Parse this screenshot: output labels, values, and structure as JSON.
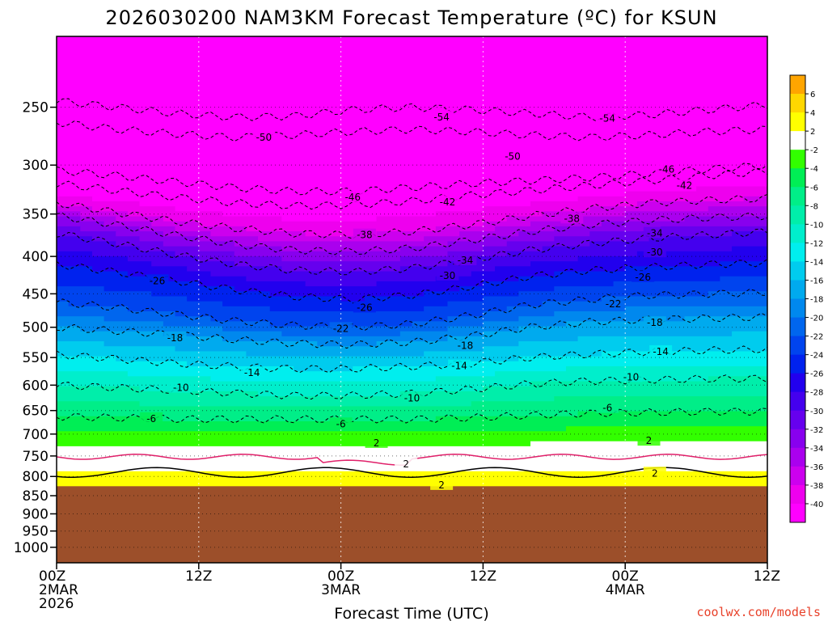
{
  "chart_data": {
    "type": "heatmap",
    "title": "2026030200 NAM3KM Forecast Temperature (ºC) for KSUN",
    "xlabel": "Forecast Time (UTC)",
    "ylabel": "",
    "y_scale": "log-pressure",
    "y_unit": "hPa",
    "ylim": [
      1050,
      200
    ],
    "xlim_hours": [
      0,
      60
    ],
    "y_ticks": [
      250,
      300,
      350,
      400,
      450,
      500,
      550,
      600,
      650,
      700,
      750,
      800,
      850,
      900,
      950,
      1000
    ],
    "x_ticks": [
      {
        "hour": 0,
        "lines": [
          "00Z",
          "2MAR",
          "2026"
        ]
      },
      {
        "hour": 12,
        "lines": [
          "12Z"
        ]
      },
      {
        "hour": 24,
        "lines": [
          "00Z",
          "3MAR"
        ]
      },
      {
        "hour": 36,
        "lines": [
          "12Z"
        ]
      },
      {
        "hour": 48,
        "lines": [
          "00Z",
          "4MAR"
        ]
      },
      {
        "hour": 60,
        "lines": [
          "12Z"
        ]
      }
    ],
    "colorbar": {
      "levels": [
        6,
        4,
        2,
        -2,
        -4,
        -6,
        -8,
        -10,
        -12,
        -14,
        -16,
        -18,
        -20,
        -22,
        -24,
        -26,
        -28,
        -30,
        -32,
        -34,
        -36,
        -38,
        -40
      ],
      "colors": [
        "#ffa500",
        "#ffd700",
        "#ffff00",
        "#ffffff",
        "#32ff00",
        "#00ee55",
        "#00ee88",
        "#00eeaa",
        "#00eecc",
        "#00eeee",
        "#00ccee",
        "#00aaee",
        "#0088ee",
        "#0066ee",
        "#0044ee",
        "#0022ee",
        "#2200ee",
        "#4400ee",
        "#6600ee",
        "#8800ee",
        "#aa00ee",
        "#cc00ee",
        "#ee00ee",
        "#ff00ff"
      ]
    },
    "ground_level_hpa": 825,
    "ground_color": "#9c4f2a",
    "freezing_line_color": "#e0206a",
    "isotherms": [
      {
        "t": -54,
        "p": [
          245,
          250,
          255,
          258,
          257,
          252,
          250,
          252,
          255,
          258,
          256,
          252,
          248
        ]
      },
      {
        "t": -50,
        "p": [
          262,
          268,
          272,
          275,
          273,
          270,
          268,
          270,
          273,
          275,
          273,
          270,
          268
        ]
      },
      {
        "t": -46,
        "p": [
          305,
          310,
          316,
          322,
          326,
          326,
          322,
          318,
          315,
          312,
          308,
          304,
          300
        ]
      },
      {
        "t": -42,
        "p": [
          318,
          325,
          332,
          338,
          341,
          340,
          336,
          330,
          325,
          320,
          315,
          310,
          306
        ]
      },
      {
        "t": -38,
        "p": [
          338,
          348,
          358,
          366,
          372,
          374,
          370,
          362,
          352,
          344,
          338,
          335,
          333
        ]
      },
      {
        "t": -34,
        "p": [
          352,
          362,
          374,
          385,
          392,
          394,
          390,
          380,
          370,
          362,
          357,
          354,
          352
        ]
      },
      {
        "t": -30,
        "p": [
          372,
          384,
          398,
          410,
          418,
          420,
          415,
          404,
          392,
          384,
          378,
          374,
          370
        ]
      },
      {
        "t": -26,
        "p": [
          410,
          420,
          432,
          444,
          454,
          458,
          452,
          440,
          426,
          418,
          414,
          410,
          408
        ]
      },
      {
        "t": -22,
        "p": [
          462,
          470,
          480,
          490,
          497,
          500,
          495,
          482,
          466,
          458,
          452,
          450,
          448
        ]
      },
      {
        "t": -18,
        "p": [
          500,
          506,
          512,
          520,
          526,
          528,
          524,
          514,
          500,
          492,
          488,
          486,
          484
        ]
      },
      {
        "t": -14,
        "p": [
          545,
          552,
          560,
          566,
          570,
          570,
          566,
          560,
          550,
          544,
          540,
          538,
          536
        ]
      },
      {
        "t": -10,
        "p": [
          600,
          605,
          610,
          615,
          620,
          620,
          616,
          608,
          598,
          592,
          590,
          588,
          588
        ]
      },
      {
        "t": -6,
        "p": [
          662,
          665,
          668,
          668,
          668,
          668,
          668,
          665,
          660,
          656,
          654,
          652,
          652
        ]
      }
    ],
    "contour_labels": [
      {
        "t": -50,
        "hour": 17.5,
        "p": 275
      },
      {
        "t": -54,
        "hour": 32.5,
        "p": 258
      },
      {
        "t": -50,
        "hour": 38.5,
        "p": 292
      },
      {
        "t": -54,
        "hour": 46.5,
        "p": 259
      },
      {
        "t": -46,
        "hour": 51.5,
        "p": 304
      },
      {
        "t": -42,
        "hour": 53.0,
        "p": 320
      },
      {
        "t": -46,
        "hour": 25.0,
        "p": 332
      },
      {
        "t": -42,
        "hour": 33.0,
        "p": 337
      },
      {
        "t": -38,
        "hour": 43.5,
        "p": 355
      },
      {
        "t": -34,
        "hour": 50.5,
        "p": 372
      },
      {
        "t": -30,
        "hour": 50.5,
        "p": 395
      },
      {
        "t": -38,
        "hour": 26.0,
        "p": 374
      },
      {
        "t": -34,
        "hour": 34.5,
        "p": 405
      },
      {
        "t": -26,
        "hour": 49.5,
        "p": 427
      },
      {
        "t": -30,
        "hour": 33.0,
        "p": 425
      },
      {
        "t": -26,
        "hour": 8.5,
        "p": 432
      },
      {
        "t": -22,
        "hour": 47.0,
        "p": 465
      },
      {
        "t": -26,
        "hour": 26.0,
        "p": 470
      },
      {
        "t": -18,
        "hour": 50.5,
        "p": 493
      },
      {
        "t": -22,
        "hour": 24.0,
        "p": 502
      },
      {
        "t": -18,
        "hour": 10.0,
        "p": 517
      },
      {
        "t": -14,
        "hour": 51.0,
        "p": 540
      },
      {
        "t": -18,
        "hour": 34.5,
        "p": 530
      },
      {
        "t": -14,
        "hour": 34.0,
        "p": 565
      },
      {
        "t": -14,
        "hour": 16.5,
        "p": 577
      },
      {
        "t": -10,
        "hour": 48.5,
        "p": 585
      },
      {
        "t": -10,
        "hour": 10.5,
        "p": 605
      },
      {
        "t": -10,
        "hour": 30.0,
        "p": 625
      },
      {
        "t": -6,
        "hour": 46.5,
        "p": 645
      },
      {
        "t": -6,
        "hour": 8.0,
        "p": 667
      },
      {
        "t": -6,
        "hour": 24.0,
        "p": 678
      },
      {
        "t": 2,
        "hour": 27.0,
        "p": 720
      },
      {
        "t": 2,
        "hour": 50.0,
        "p": 715
      },
      {
        "t": 2,
        "hour": 29.5,
        "p": 770
      },
      {
        "t": 2,
        "hour": 50.5,
        "p": 792
      },
      {
        "t": 2,
        "hour": 32.5,
        "p": 822
      }
    ]
  },
  "credit": "coolwx.com/models"
}
